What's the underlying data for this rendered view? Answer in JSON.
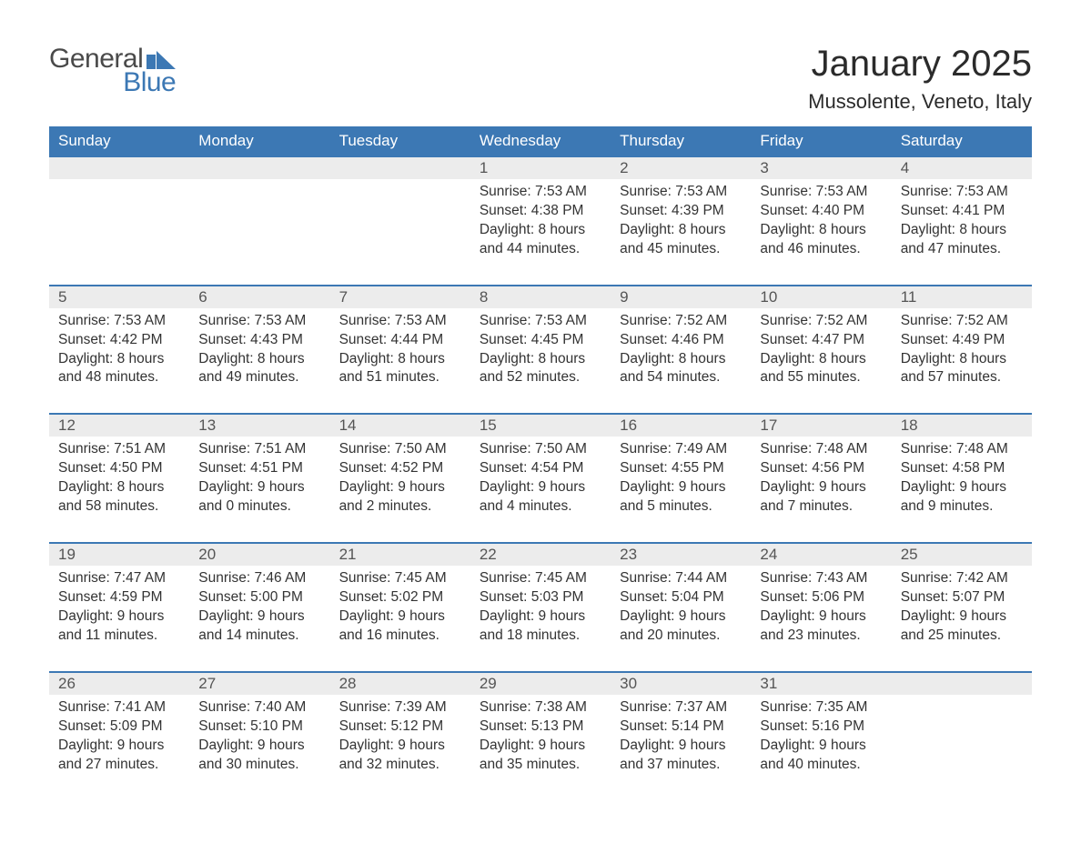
{
  "logo": {
    "word1": "General",
    "word2": "Blue",
    "flag_color": "#3c78b4"
  },
  "title": "January 2025",
  "location": "Mussolente, Veneto, Italy",
  "colors": {
    "header_bg": "#3c78b4",
    "header_text": "#ffffff",
    "daynum_bg": "#ececec",
    "row_border": "#3c78b4",
    "body_text": "#333333",
    "page_bg": "#ffffff"
  },
  "weekdays": [
    "Sunday",
    "Monday",
    "Tuesday",
    "Wednesday",
    "Thursday",
    "Friday",
    "Saturday"
  ],
  "weeks": [
    [
      null,
      null,
      null,
      {
        "n": "1",
        "sunrise": "7:53 AM",
        "sunset": "4:38 PM",
        "day_h": 8,
        "day_m": 44
      },
      {
        "n": "2",
        "sunrise": "7:53 AM",
        "sunset": "4:39 PM",
        "day_h": 8,
        "day_m": 45
      },
      {
        "n": "3",
        "sunrise": "7:53 AM",
        "sunset": "4:40 PM",
        "day_h": 8,
        "day_m": 46
      },
      {
        "n": "4",
        "sunrise": "7:53 AM",
        "sunset": "4:41 PM",
        "day_h": 8,
        "day_m": 47
      }
    ],
    [
      {
        "n": "5",
        "sunrise": "7:53 AM",
        "sunset": "4:42 PM",
        "day_h": 8,
        "day_m": 48
      },
      {
        "n": "6",
        "sunrise": "7:53 AM",
        "sunset": "4:43 PM",
        "day_h": 8,
        "day_m": 49
      },
      {
        "n": "7",
        "sunrise": "7:53 AM",
        "sunset": "4:44 PM",
        "day_h": 8,
        "day_m": 51
      },
      {
        "n": "8",
        "sunrise": "7:53 AM",
        "sunset": "4:45 PM",
        "day_h": 8,
        "day_m": 52
      },
      {
        "n": "9",
        "sunrise": "7:52 AM",
        "sunset": "4:46 PM",
        "day_h": 8,
        "day_m": 54
      },
      {
        "n": "10",
        "sunrise": "7:52 AM",
        "sunset": "4:47 PM",
        "day_h": 8,
        "day_m": 55
      },
      {
        "n": "11",
        "sunrise": "7:52 AM",
        "sunset": "4:49 PM",
        "day_h": 8,
        "day_m": 57
      }
    ],
    [
      {
        "n": "12",
        "sunrise": "7:51 AM",
        "sunset": "4:50 PM",
        "day_h": 8,
        "day_m": 58
      },
      {
        "n": "13",
        "sunrise": "7:51 AM",
        "sunset": "4:51 PM",
        "day_h": 9,
        "day_m": 0
      },
      {
        "n": "14",
        "sunrise": "7:50 AM",
        "sunset": "4:52 PM",
        "day_h": 9,
        "day_m": 2
      },
      {
        "n": "15",
        "sunrise": "7:50 AM",
        "sunset": "4:54 PM",
        "day_h": 9,
        "day_m": 4
      },
      {
        "n": "16",
        "sunrise": "7:49 AM",
        "sunset": "4:55 PM",
        "day_h": 9,
        "day_m": 5
      },
      {
        "n": "17",
        "sunrise": "7:48 AM",
        "sunset": "4:56 PM",
        "day_h": 9,
        "day_m": 7
      },
      {
        "n": "18",
        "sunrise": "7:48 AM",
        "sunset": "4:58 PM",
        "day_h": 9,
        "day_m": 9
      }
    ],
    [
      {
        "n": "19",
        "sunrise": "7:47 AM",
        "sunset": "4:59 PM",
        "day_h": 9,
        "day_m": 11
      },
      {
        "n": "20",
        "sunrise": "7:46 AM",
        "sunset": "5:00 PM",
        "day_h": 9,
        "day_m": 14
      },
      {
        "n": "21",
        "sunrise": "7:45 AM",
        "sunset": "5:02 PM",
        "day_h": 9,
        "day_m": 16
      },
      {
        "n": "22",
        "sunrise": "7:45 AM",
        "sunset": "5:03 PM",
        "day_h": 9,
        "day_m": 18
      },
      {
        "n": "23",
        "sunrise": "7:44 AM",
        "sunset": "5:04 PM",
        "day_h": 9,
        "day_m": 20
      },
      {
        "n": "24",
        "sunrise": "7:43 AM",
        "sunset": "5:06 PM",
        "day_h": 9,
        "day_m": 23
      },
      {
        "n": "25",
        "sunrise": "7:42 AM",
        "sunset": "5:07 PM",
        "day_h": 9,
        "day_m": 25
      }
    ],
    [
      {
        "n": "26",
        "sunrise": "7:41 AM",
        "sunset": "5:09 PM",
        "day_h": 9,
        "day_m": 27
      },
      {
        "n": "27",
        "sunrise": "7:40 AM",
        "sunset": "5:10 PM",
        "day_h": 9,
        "day_m": 30
      },
      {
        "n": "28",
        "sunrise": "7:39 AM",
        "sunset": "5:12 PM",
        "day_h": 9,
        "day_m": 32
      },
      {
        "n": "29",
        "sunrise": "7:38 AM",
        "sunset": "5:13 PM",
        "day_h": 9,
        "day_m": 35
      },
      {
        "n": "30",
        "sunrise": "7:37 AM",
        "sunset": "5:14 PM",
        "day_h": 9,
        "day_m": 37
      },
      {
        "n": "31",
        "sunrise": "7:35 AM",
        "sunset": "5:16 PM",
        "day_h": 9,
        "day_m": 40
      },
      null
    ]
  ],
  "labels": {
    "sunrise": "Sunrise:",
    "sunset": "Sunset:",
    "daylight": "Daylight:",
    "hours": "hours",
    "and": "and",
    "minutes": "minutes."
  }
}
